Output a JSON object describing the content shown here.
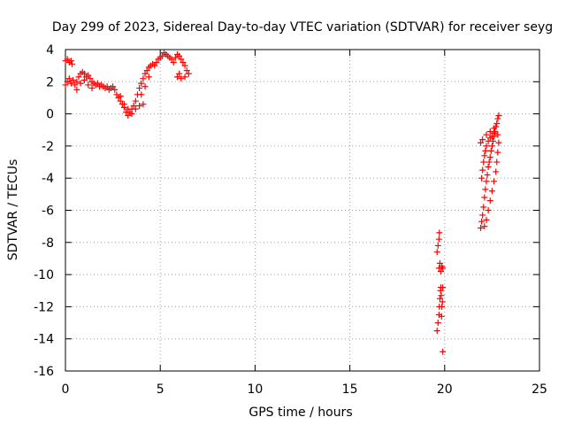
{
  "chart_data": {
    "type": "scatter",
    "title": "Day 299 of 2023, Sidereal Day-to-day VTEC variation (SDTVAR) for receiver seyg",
    "xlabel": "GPS time / hours",
    "ylabel": "SDTVAR / TECUs",
    "xlim": [
      0,
      25
    ],
    "ylim": [
      -16,
      4
    ],
    "xticks": [
      "0",
      "5",
      "10",
      "15",
      "20",
      "25"
    ],
    "yticks": [
      "4",
      "2",
      "0",
      "-2",
      "-4",
      "-6",
      "-8",
      "-10",
      "-12",
      "-14",
      "-16"
    ],
    "grid": true,
    "marker": "+",
    "series": [
      {
        "name": "SDTVAR",
        "color": "#ff0000",
        "points": [
          [
            0.0,
            3.3
          ],
          [
            0.1,
            3.4
          ],
          [
            0.2,
            3.2
          ],
          [
            0.3,
            3.3
          ],
          [
            0.35,
            3.1
          ],
          [
            0.0,
            1.8
          ],
          [
            0.1,
            2.0
          ],
          [
            0.2,
            2.2
          ],
          [
            0.3,
            1.9
          ],
          [
            0.4,
            2.1
          ],
          [
            0.5,
            1.8
          ],
          [
            0.6,
            2.0
          ],
          [
            0.7,
            2.3
          ],
          [
            0.8,
            2.5
          ],
          [
            0.9,
            2.6
          ],
          [
            1.0,
            2.5
          ],
          [
            1.1,
            2.3
          ],
          [
            1.2,
            2.4
          ],
          [
            1.3,
            2.2
          ],
          [
            1.4,
            2.0
          ],
          [
            1.5,
            1.9
          ],
          [
            1.6,
            1.8
          ],
          [
            1.7,
            1.9
          ],
          [
            1.8,
            1.7
          ],
          [
            1.9,
            1.8
          ],
          [
            2.0,
            1.7
          ],
          [
            2.1,
            1.6
          ],
          [
            2.2,
            1.7
          ],
          [
            2.3,
            1.5
          ],
          [
            2.4,
            1.6
          ],
          [
            2.5,
            1.7
          ],
          [
            2.6,
            1.5
          ],
          [
            2.7,
            1.2
          ],
          [
            2.8,
            1.0
          ],
          [
            2.9,
            0.8
          ],
          [
            3.0,
            0.6
          ],
          [
            3.1,
            0.4
          ],
          [
            3.2,
            0.1
          ],
          [
            3.3,
            -0.1
          ],
          [
            3.4,
            0.1
          ],
          [
            3.5,
            0.3
          ],
          [
            3.6,
            0.5
          ],
          [
            3.7,
            0.8
          ],
          [
            3.8,
            1.2
          ],
          [
            3.9,
            1.6
          ],
          [
            4.0,
            1.9
          ],
          [
            4.1,
            2.2
          ],
          [
            4.2,
            2.5
          ],
          [
            4.3,
            2.7
          ],
          [
            4.4,
            2.9
          ],
          [
            4.5,
            3.0
          ],
          [
            4.6,
            3.1
          ],
          [
            4.7,
            3.0
          ],
          [
            4.8,
            3.2
          ],
          [
            4.9,
            3.4
          ],
          [
            5.0,
            3.5
          ],
          [
            5.1,
            3.6
          ],
          [
            5.2,
            3.8
          ],
          [
            5.3,
            3.7
          ],
          [
            5.4,
            3.6
          ],
          [
            5.5,
            3.5
          ],
          [
            5.6,
            3.4
          ],
          [
            5.7,
            3.2
          ],
          [
            5.8,
            3.5
          ],
          [
            5.9,
            3.7
          ],
          [
            6.0,
            3.6
          ],
          [
            6.1,
            3.4
          ],
          [
            6.2,
            3.2
          ],
          [
            6.3,
            3.0
          ],
          [
            6.4,
            2.7
          ],
          [
            6.5,
            2.5
          ],
          [
            6.3,
            2.3
          ],
          [
            6.1,
            2.2
          ],
          [
            6.0,
            2.5
          ],
          [
            5.9,
            2.3
          ],
          [
            0.6,
            1.5
          ],
          [
            0.8,
            1.9
          ],
          [
            1.0,
            2.1
          ],
          [
            1.2,
            1.8
          ],
          [
            1.4,
            1.6
          ],
          [
            2.9,
            1.1
          ],
          [
            3.1,
            0.6
          ],
          [
            3.3,
            0.3
          ],
          [
            3.5,
            0.0
          ],
          [
            3.7,
            0.3
          ],
          [
            3.9,
            0.5
          ],
          [
            4.1,
            0.6
          ],
          [
            4.0,
            1.2
          ],
          [
            4.2,
            1.7
          ],
          [
            4.4,
            2.3
          ],
          [
            19.6,
            -13.5
          ],
          [
            19.65,
            -13.0
          ],
          [
            19.7,
            -12.5
          ],
          [
            19.72,
            -12.0
          ],
          [
            19.75,
            -11.5
          ],
          [
            19.78,
            -11.0
          ],
          [
            19.8,
            -10.8
          ],
          [
            19.82,
            -11.3
          ],
          [
            19.85,
            -12.0
          ],
          [
            19.9,
            -10.8
          ],
          [
            19.88,
            -11.7
          ],
          [
            19.84,
            -12.6
          ],
          [
            19.7,
            -9.6
          ],
          [
            19.75,
            -9.3
          ],
          [
            19.8,
            -9.8
          ],
          [
            19.85,
            -9.5
          ],
          [
            19.9,
            -9.6
          ],
          [
            19.6,
            -8.6
          ],
          [
            19.65,
            -8.2
          ],
          [
            19.7,
            -7.8
          ],
          [
            19.72,
            -7.4
          ],
          [
            19.9,
            -14.8
          ],
          [
            21.9,
            -7.1
          ],
          [
            21.95,
            -6.7
          ],
          [
            22.0,
            -6.3
          ],
          [
            22.05,
            -5.8
          ],
          [
            22.1,
            -5.2
          ],
          [
            22.15,
            -4.7
          ],
          [
            22.2,
            -4.2
          ],
          [
            22.25,
            -3.8
          ],
          [
            22.3,
            -3.3
          ],
          [
            22.35,
            -3.0
          ],
          [
            22.4,
            -2.7
          ],
          [
            22.45,
            -2.3
          ],
          [
            22.5,
            -2.0
          ],
          [
            22.55,
            -1.7
          ],
          [
            22.6,
            -1.4
          ],
          [
            22.65,
            -1.1
          ],
          [
            22.7,
            -0.8
          ],
          [
            22.75,
            -0.6
          ],
          [
            22.8,
            -0.3
          ],
          [
            22.85,
            -0.1
          ],
          [
            21.95,
            -4.0
          ],
          [
            22.0,
            -3.5
          ],
          [
            22.05,
            -3.0
          ],
          [
            22.1,
            -2.6
          ],
          [
            22.15,
            -2.3
          ],
          [
            22.2,
            -2.0
          ],
          [
            22.3,
            -1.7
          ],
          [
            22.4,
            -1.5
          ],
          [
            22.5,
            -1.4
          ],
          [
            22.6,
            -1.2
          ],
          [
            21.9,
            -1.8
          ],
          [
            22.0,
            -1.6
          ],
          [
            22.2,
            -1.3
          ],
          [
            22.4,
            -1.1
          ],
          [
            22.6,
            -0.9
          ],
          [
            22.8,
            -1.3
          ],
          [
            22.85,
            -1.8
          ],
          [
            22.8,
            -2.4
          ],
          [
            22.75,
            -3.0
          ],
          [
            22.7,
            -3.6
          ],
          [
            22.6,
            -4.2
          ],
          [
            22.5,
            -4.8
          ],
          [
            22.4,
            -5.4
          ],
          [
            22.3,
            -6.0
          ],
          [
            22.2,
            -6.6
          ],
          [
            22.1,
            -7.0
          ]
        ]
      }
    ]
  }
}
